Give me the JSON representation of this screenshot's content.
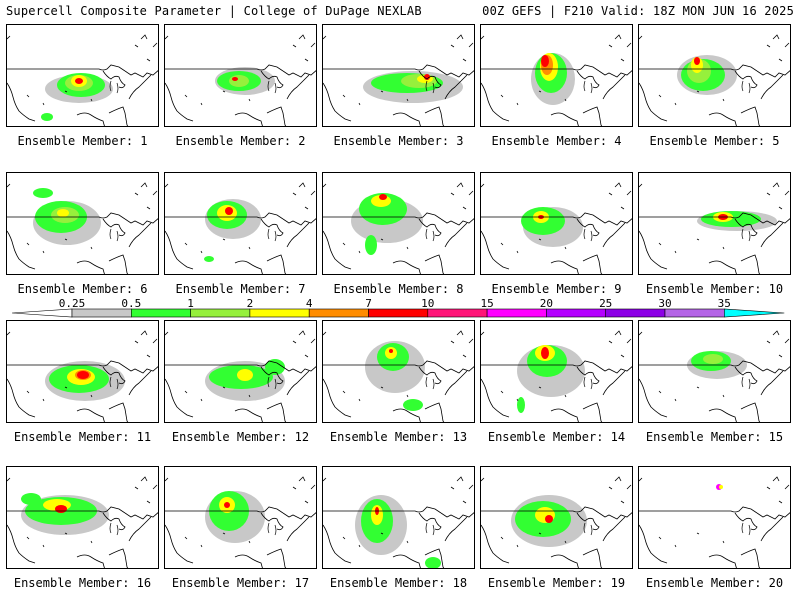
{
  "header": {
    "left_title": "Supercell Composite Parameter | College of DuPage NEXLAB",
    "right_title": "00Z GEFS | F210 Valid: 18Z MON JUN 16 2025"
  },
  "panel_label_prefix": "Ensemble Member: ",
  "members": [
    "1",
    "2",
    "3",
    "4",
    "5",
    "6",
    "7",
    "8",
    "9",
    "10",
    "11",
    "12",
    "13",
    "14",
    "15",
    "16",
    "17",
    "18",
    "19",
    "20"
  ],
  "colorbar": {
    "ticks": [
      "0.25",
      "0.5",
      "1",
      "2",
      "4",
      "7",
      "10",
      "15",
      "20",
      "25",
      "30",
      "35"
    ],
    "colors": [
      "#ffffff",
      "#c8c8c8",
      "#32ff32",
      "#96f03c",
      "#ffff00",
      "#ff8c00",
      "#ff0000",
      "#ff1478",
      "#ff00ff",
      "#b400ff",
      "#8c00e6",
      "#b464e6",
      "#00ffff"
    ]
  },
  "field_colors": {
    "light": "#c8c8c8",
    "green": "#32ff32",
    "ltgreen": "#96f03c",
    "yellow": "#ffff00",
    "orange": "#ff8c00",
    "red": "#ff0000",
    "magenta": "#ff00ff"
  }
}
